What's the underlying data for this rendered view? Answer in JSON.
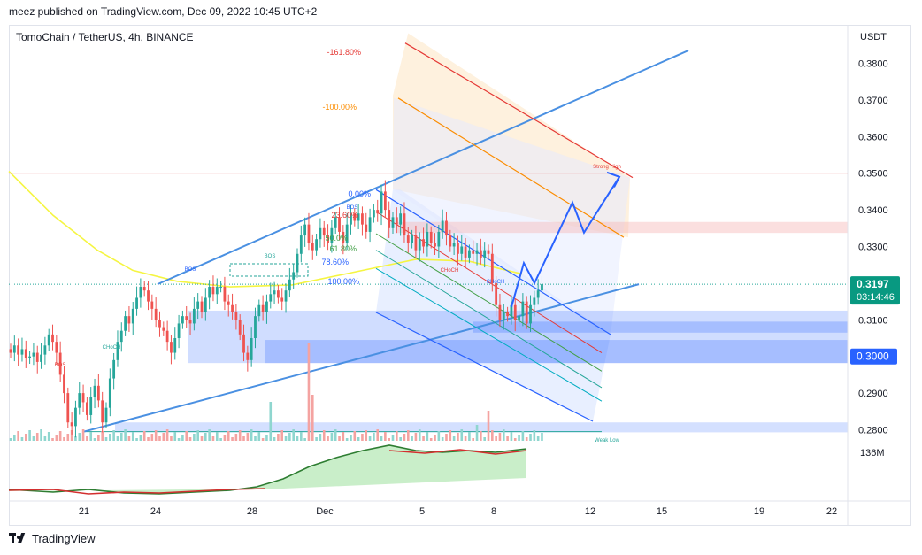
{
  "header": {
    "published": "meez published on TradingView.com, Dec 09, 2022 10:45 UTC+2"
  },
  "symbol_line": "TomoChain / TetherUS, 4h, BINANCE",
  "footer": {
    "brand": "TradingView"
  },
  "price_axis": {
    "currency": "USDT",
    "current_price": "0.3197",
    "countdown": "03:14:46",
    "marked_level": "0.3000",
    "volume_label": "136M",
    "current_color": "#089981",
    "marked_color": "#2962ff"
  },
  "annotations": {
    "fib_labels": [
      "-161.80%",
      "-100.00%",
      "0.00%",
      "23.60%",
      "50.0%",
      "61.80%",
      "78.60%",
      "100.00%"
    ],
    "structure_labels": [
      "BOS",
      "BOS",
      "BOS",
      "BOS",
      "CHoCH",
      "CHoCH",
      "CHoCH"
    ],
    "strong_high": "Strong High",
    "weak_low": "Weak Low"
  },
  "colors": {
    "up": "#26a69a",
    "down": "#ef5350",
    "channel": "#4a90e2",
    "ma": "#f5f542",
    "fib_red": "#e53935",
    "fib_orange": "#fb8c00"
  },
  "chart_data": {
    "type": "candlestick",
    "title": "TomoChain / TetherUS, 4h, BINANCE",
    "x_ticks": [
      "21",
      "24",
      "28",
      "Dec",
      "5",
      "8",
      "12",
      "15",
      "19",
      "22"
    ],
    "y_ticks": [
      0.28,
      0.29,
      0.3,
      0.31,
      0.32,
      0.33,
      0.34,
      0.35,
      0.36,
      0.37,
      0.38
    ],
    "ylim": [
      0.2765,
      0.3905
    ],
    "ylabel": "USDT",
    "close": [
      0.301,
      0.303,
      0.3005,
      0.302,
      0.2995,
      0.3,
      0.301,
      0.2985,
      0.3005,
      0.303,
      0.306,
      0.304,
      0.301,
      0.295,
      0.29,
      0.282,
      0.281,
      0.286,
      0.29,
      0.2875,
      0.284,
      0.289,
      0.292,
      0.288,
      0.282,
      0.286,
      0.294,
      0.299,
      0.304,
      0.307,
      0.311,
      0.309,
      0.313,
      0.316,
      0.319,
      0.318,
      0.315,
      0.313,
      0.31,
      0.308,
      0.307,
      0.304,
      0.301,
      0.305,
      0.309,
      0.311,
      0.31,
      0.309,
      0.313,
      0.315,
      0.312,
      0.316,
      0.319,
      0.317,
      0.319,
      0.319,
      0.315,
      0.314,
      0.312,
      0.31,
      0.306,
      0.301,
      0.299,
      0.305,
      0.311,
      0.314,
      0.312,
      0.315,
      0.317,
      0.318,
      0.316,
      0.315,
      0.318,
      0.321,
      0.323,
      0.328,
      0.333,
      0.336,
      0.331,
      0.329,
      0.332,
      0.335,
      0.333,
      0.331,
      0.335,
      0.338,
      0.334,
      0.331,
      0.336,
      0.339,
      0.337,
      0.339,
      0.336,
      0.334,
      0.338,
      0.34,
      0.339,
      0.345,
      0.34,
      0.335,
      0.338,
      0.336,
      0.339,
      0.333,
      0.331,
      0.333,
      0.329,
      0.332,
      0.33,
      0.334,
      0.331,
      0.33,
      0.334,
      0.337,
      0.333,
      0.33,
      0.331,
      0.328,
      0.33,
      0.327,
      0.329,
      0.328,
      0.329,
      0.327,
      0.329,
      0.328,
      0.32,
      0.314,
      0.31,
      0.312,
      0.311,
      0.314,
      0.31,
      0.311,
      0.315,
      0.309,
      0.314,
      0.316,
      0.318,
      0.3197
    ],
    "current_price": 0.3197,
    "levels": {
      "strong_high": 0.35,
      "marked": 0.3,
      "weak_low": 0.2795
    },
    "volume_series_label": "136M"
  }
}
